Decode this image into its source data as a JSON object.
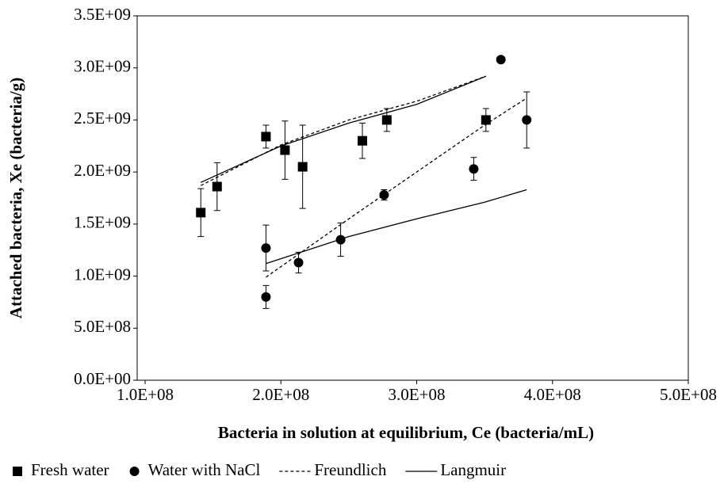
{
  "chart_data": {
    "type": "scatter",
    "x_label": "Bacteria in solution at equilibrium, Ce  (bacteria/mL)",
    "y_label": "Attached bacteria, Xe (bacteria/g)",
    "xlim": [
      100000000,
      500000000
    ],
    "xticks": [
      {
        "value": 100000000,
        "label": "1.0E+08"
      },
      {
        "value": 200000000,
        "label": "2.0E+08"
      },
      {
        "value": 300000000,
        "label": "3.0E+08"
      },
      {
        "value": 400000000,
        "label": "4.0E+08"
      },
      {
        "value": 500000000,
        "label": "5.0E+08"
      }
    ],
    "ylim": [
      0,
      3500000000
    ],
    "yticks": [
      {
        "value": 0,
        "label": "0.0E+00"
      },
      {
        "value": 500000000,
        "label": "5.0E+08"
      },
      {
        "value": 1000000000,
        "label": "1.0E+09"
      },
      {
        "value": 1500000000,
        "label": "1.5E+09"
      },
      {
        "value": 2000000000,
        "label": "2.0E+09"
      },
      {
        "value": 2500000000,
        "label": "2.5E+09"
      },
      {
        "value": 3000000000,
        "label": "3.0E+09"
      },
      {
        "value": 3500000000,
        "label": "3.5E+09"
      }
    ],
    "legend": "bottom",
    "series": [
      {
        "name": "Fresh water",
        "kind": "points",
        "marker": "square",
        "color": "#000000",
        "x": [
          141000000,
          153000000,
          189000000,
          203000000,
          216000000,
          260000000,
          278000000,
          351000000
        ],
        "values": [
          1610000000,
          1860000000,
          2340000000,
          2210000000,
          2050000000,
          2300000000,
          2500000000,
          2500000000
        ],
        "errors": [
          230000000,
          230000000,
          110000000,
          280000000,
          400000000,
          170000000,
          110000000,
          110000000
        ]
      },
      {
        "name": "Water with NaCl",
        "kind": "points",
        "marker": "circle",
        "color": "#000000",
        "x": [
          189000000,
          189000000,
          213000000,
          244000000,
          276000000,
          342000000,
          362000000,
          381000000
        ],
        "values": [
          1270000000,
          800000000,
          1130000000,
          1350000000,
          1780000000,
          2030000000,
          3080000000,
          2500000000
        ],
        "errors": [
          220000000,
          110000000,
          100000000,
          160000000,
          50000000,
          110000000,
          null,
          270000000
        ]
      },
      {
        "name": "Freundlich",
        "kind": "line",
        "dash": "4,3",
        "color": "#000000",
        "x": [
          141000000,
          200000000,
          250000000,
          300000000,
          351000000
        ],
        "values": [
          1870000000,
          2260000000,
          2500000000,
          2680000000,
          2920000000
        ]
      },
      {
        "name": "Langmuir",
        "kind": "line",
        "color": "#000000",
        "x": [
          141000000,
          200000000,
          250000000,
          300000000,
          351000000
        ],
        "values": [
          1900000000,
          2250000000,
          2470000000,
          2650000000,
          2920000000
        ]
      },
      {
        "kind": "line",
        "dash": "4,3",
        "color": "#000000",
        "x": [
          189000000,
          250000000,
          300000000,
          350000000,
          381000000
        ],
        "values": [
          990000000,
          1550000000,
          2000000000,
          2450000000,
          2710000000
        ]
      },
      {
        "kind": "line",
        "color": "#000000",
        "x": [
          189000000,
          250000000,
          300000000,
          350000000,
          381000000
        ],
        "values": [
          1120000000,
          1380000000,
          1550000000,
          1710000000,
          1830000000
        ]
      }
    ]
  }
}
